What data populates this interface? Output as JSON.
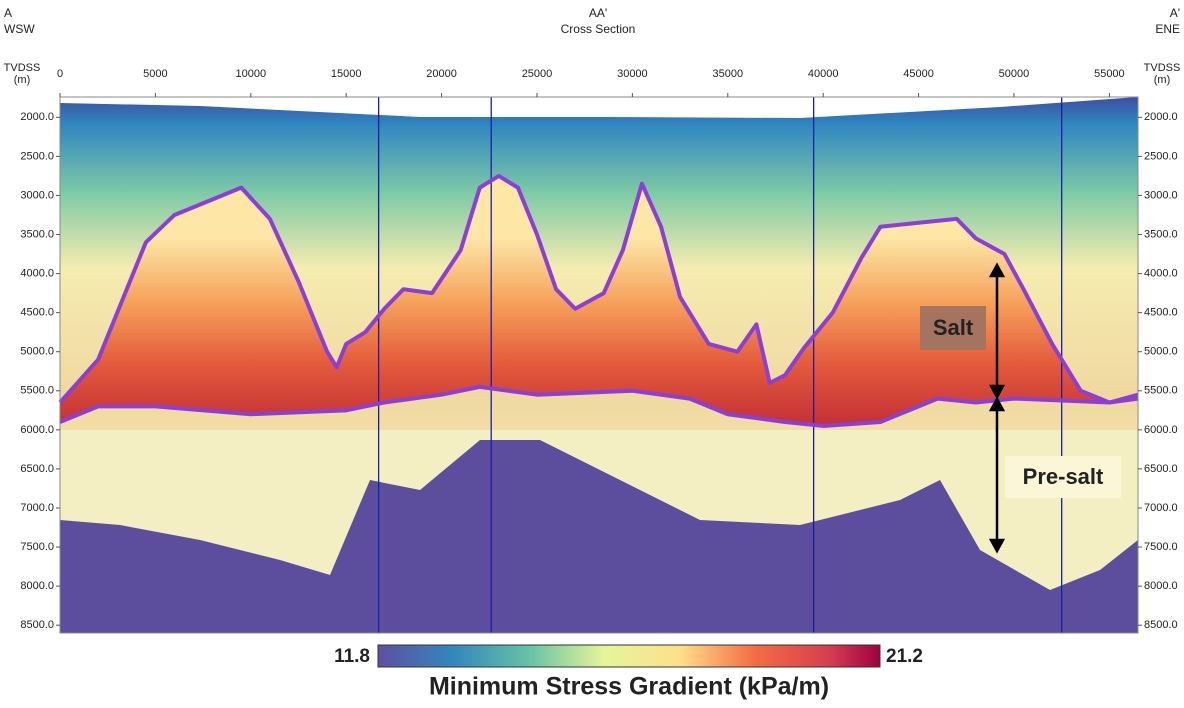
{
  "chart_data": {
    "type": "line",
    "header": {
      "left": [
        "A",
        "WSW"
      ],
      "center": [
        "AA'",
        "Cross Section"
      ],
      "right": [
        "A'",
        "ENE"
      ]
    },
    "y_label": [
      "TVDSS",
      "(m)"
    ],
    "y_inverted": true,
    "xlim": [
      0,
      56500
    ],
    "xticks": [
      0,
      5000,
      10000,
      15000,
      20000,
      25000,
      30000,
      35000,
      40000,
      45000,
      50000,
      55000
    ],
    "ylim": [
      1740,
      8600
    ],
    "yticks": [
      {
        "value": 2000,
        "label": "2000.0"
      },
      {
        "value": 2500,
        "label": "2500.0"
      },
      {
        "value": 3000,
        "label": "3000.0"
      },
      {
        "value": 3500,
        "label": "3500.0"
      },
      {
        "value": 4000,
        "label": "4000.0"
      },
      {
        "value": 4500,
        "label": "4500.0"
      },
      {
        "value": 5000,
        "label": "5000.0"
      },
      {
        "value": 5500,
        "label": "5500.0"
      },
      {
        "value": 6000,
        "label": "6000.0"
      },
      {
        "value": 6500,
        "label": "6500.0"
      },
      {
        "value": 7000,
        "label": "7000.0"
      },
      {
        "value": 7500,
        "label": "7500.0"
      },
      {
        "value": 8000,
        "label": "8000.0"
      },
      {
        "value": 8500,
        "label": "8500.0"
      }
    ],
    "section_lines": [
      16700,
      22600,
      39500,
      52500
    ],
    "section_line_color": "#1c1ca8",
    "series": [
      {
        "name": "Top salt",
        "color": "#8c3fd6",
        "x": [
          0,
          2000,
          3500,
          4500,
          6000,
          8000,
          9500,
          11000,
          12500,
          14000,
          14500,
          15000,
          16000,
          17000,
          18000,
          19500,
          21000,
          22000,
          23000,
          24000,
          25000,
          26000,
          27000,
          28500,
          29500,
          30500,
          31500,
          32500,
          34000,
          35500,
          36500,
          37200,
          38000,
          39000,
          40500,
          42000,
          43000,
          45000,
          47000,
          48000,
          49500,
          50500,
          52000,
          53500,
          55000,
          56500
        ],
        "values": [
          5650,
          5100,
          4200,
          3600,
          3250,
          3050,
          2900,
          3300,
          4100,
          5000,
          5200,
          4900,
          4750,
          4450,
          4200,
          4250,
          3700,
          2900,
          2750,
          2900,
          3500,
          4200,
          4450,
          4250,
          3700,
          2850,
          3400,
          4300,
          4900,
          5000,
          4650,
          5400,
          5300,
          4950,
          4500,
          3800,
          3400,
          3350,
          3300,
          3550,
          3750,
          4200,
          4900,
          5500,
          5650,
          5600
        ]
      },
      {
        "name": "Base salt",
        "color": "#8c3fd6",
        "x": [
          0,
          2000,
          5000,
          10000,
          15000,
          17000,
          20000,
          22000,
          25000,
          30000,
          33000,
          35000,
          38000,
          40000,
          43000,
          46000,
          48000,
          50000,
          55000,
          56500
        ],
        "values": [
          5900,
          5700,
          5700,
          5800,
          5750,
          5650,
          5550,
          5450,
          5550,
          5500,
          5600,
          5800,
          5900,
          5950,
          5900,
          5600,
          5650,
          5600,
          5650,
          5550
        ]
      }
    ],
    "annotations": [
      "Salt",
      "Pre-salt"
    ],
    "colorbar": {
      "min": 11.8,
      "max": 21.2,
      "label": "Minimum Stress Gradient (kPa/m)"
    }
  }
}
